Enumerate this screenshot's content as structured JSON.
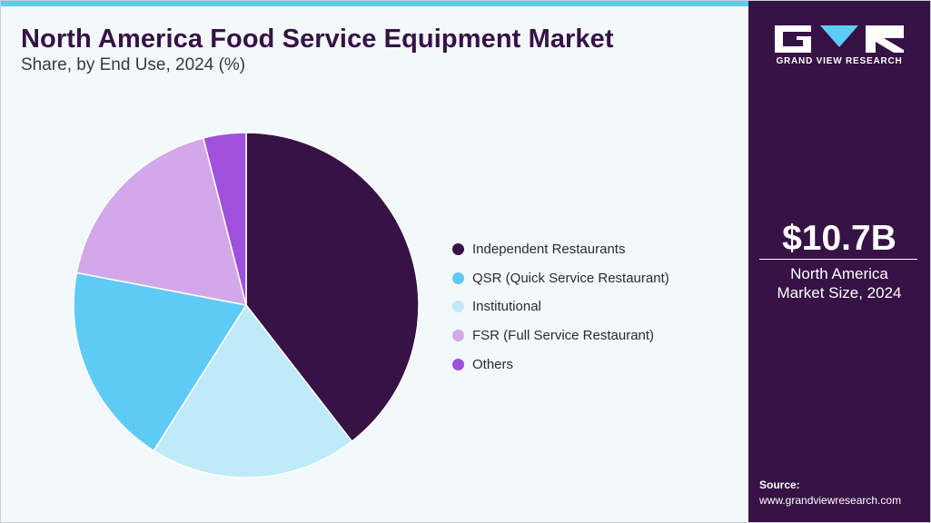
{
  "title": "North America Food Service Equipment Market",
  "subtitle": "Share, by End Use, 2024 (%)",
  "chart_data": {
    "type": "pie",
    "title": "North America Food Service Equipment Market",
    "subtitle": "Share, by End Use, 2024 (%)",
    "start_angle_deg": 0,
    "direction": "clockwise",
    "slices": [
      {
        "label": "Independent Restaurants",
        "value": 39.5,
        "color": "#361245"
      },
      {
        "label": "QSR (Quick Service Restaurant)",
        "value": 19.0,
        "color": "#5ecbf5"
      },
      {
        "label": "Institutional",
        "value": 19.5,
        "color": "#bfeaf9"
      },
      {
        "label": "FSR (Full Service Restaurant)",
        "value": 18.0,
        "color": "#d2a8ea"
      },
      {
        "label": "Others",
        "value": 4.0,
        "color": "#a050dc"
      }
    ],
    "draw_order": [
      "Independent Restaurants",
      "Institutional",
      "QSR (Quick Service Restaurant)",
      "FSR (Full Service Restaurant)",
      "Others"
    ],
    "legend_position": "right"
  },
  "sidebar": {
    "logo_text": "GRAND VIEW RESEARCH",
    "market_value": "$10.7B",
    "market_label": "North America Market Size, 2024",
    "source_label": "Source:",
    "source_url": "www.grandviewresearch.com"
  },
  "colors": {
    "brand": "#361245",
    "accent": "#5ecbf5",
    "background": "#f3f8fb"
  }
}
